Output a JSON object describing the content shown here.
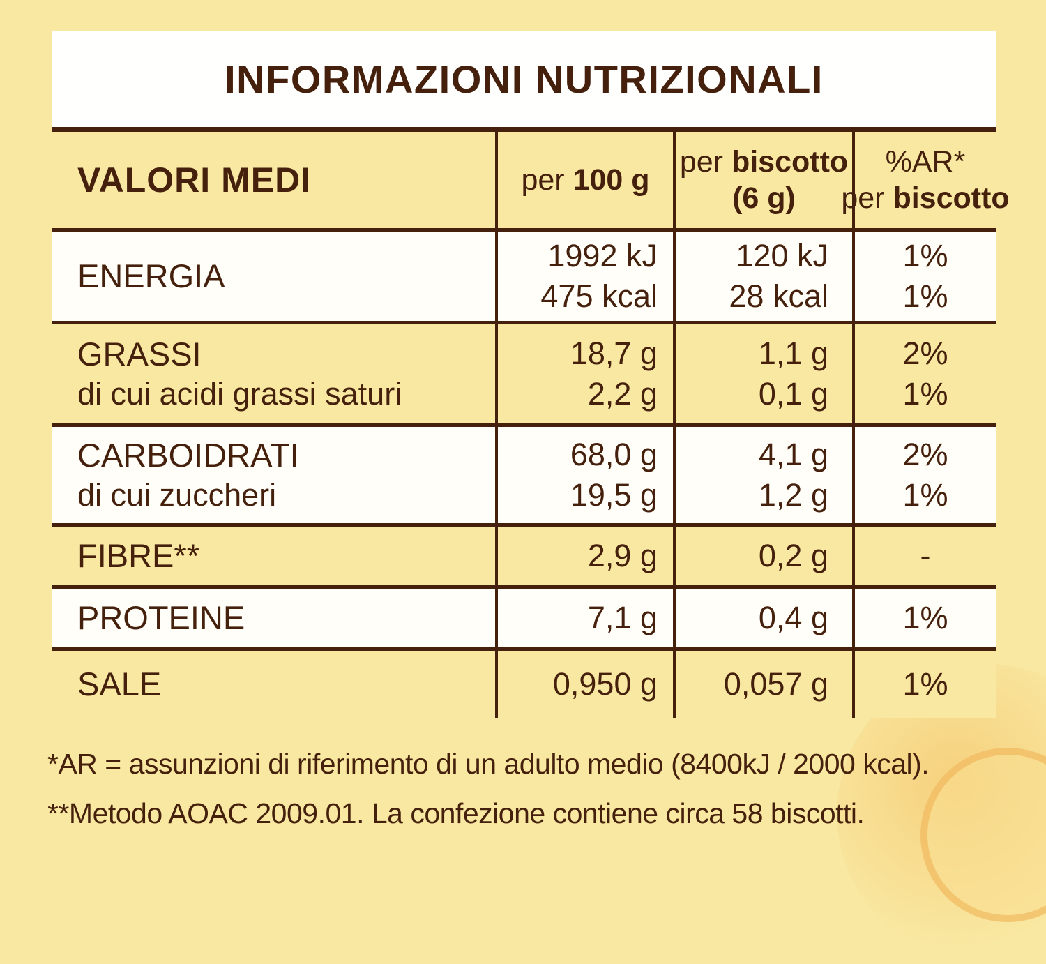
{
  "title": "INFORMAZIONI NUTRIZIONALI",
  "colors": {
    "page_background": "#f9e8a2",
    "text_brown": "#45210d",
    "title_band_background": "#ffffff",
    "row_white": "#fffef9",
    "row_yellow": "#f9e8a2",
    "accent_orange": "#eda43c"
  },
  "header": {
    "col1": "VALORI MEDI",
    "col2": {
      "pre": "per ",
      "bold": "100 g"
    },
    "col3": {
      "line1_pre": "per ",
      "line1_bold": "biscotto",
      "line2_bold": "(6 g)"
    },
    "col4": {
      "line1": "%AR*",
      "line2_pre": "per ",
      "line2_bold": "biscotto"
    }
  },
  "rows": [
    {
      "label": "ENERGIA",
      "sublabel": "",
      "per100": [
        "1992 kJ",
        "475 kcal"
      ],
      "per_biscotto": [
        "120 kJ",
        "28 kcal"
      ],
      "ar": [
        "1%",
        "1%"
      ]
    },
    {
      "label": "GRASSI",
      "sublabel": "di cui acidi grassi saturi",
      "per100": [
        "18,7 g",
        "2,2 g"
      ],
      "per_biscotto": [
        "1,1 g",
        "0,1 g"
      ],
      "ar": [
        "2%",
        "1%"
      ]
    },
    {
      "label": "CARBOIDRATI",
      "sublabel": "di cui zuccheri",
      "per100": [
        "68,0 g",
        "19,5 g"
      ],
      "per_biscotto": [
        "4,1 g",
        "1,2 g"
      ],
      "ar": [
        "2%",
        "1%"
      ]
    },
    {
      "label": "FIBRE**",
      "sublabel": "",
      "per100": [
        "2,9 g"
      ],
      "per_biscotto": [
        "0,2 g"
      ],
      "ar": [
        "-"
      ]
    },
    {
      "label": "PROTEINE",
      "sublabel": "",
      "per100": [
        "7,1 g"
      ],
      "per_biscotto": [
        "0,4 g"
      ],
      "ar": [
        "1%"
      ]
    },
    {
      "label": "SALE",
      "sublabel": "",
      "per100": [
        "0,950 g"
      ],
      "per_biscotto": [
        "0,057 g"
      ],
      "ar": [
        "1%"
      ]
    }
  ],
  "footnotes": [
    "*AR = assunzioni di riferimento di un adulto medio (8400kJ / 2000 kcal).",
    "**Metodo AOAC 2009.01. La confezione contiene circa 58 biscotti."
  ]
}
